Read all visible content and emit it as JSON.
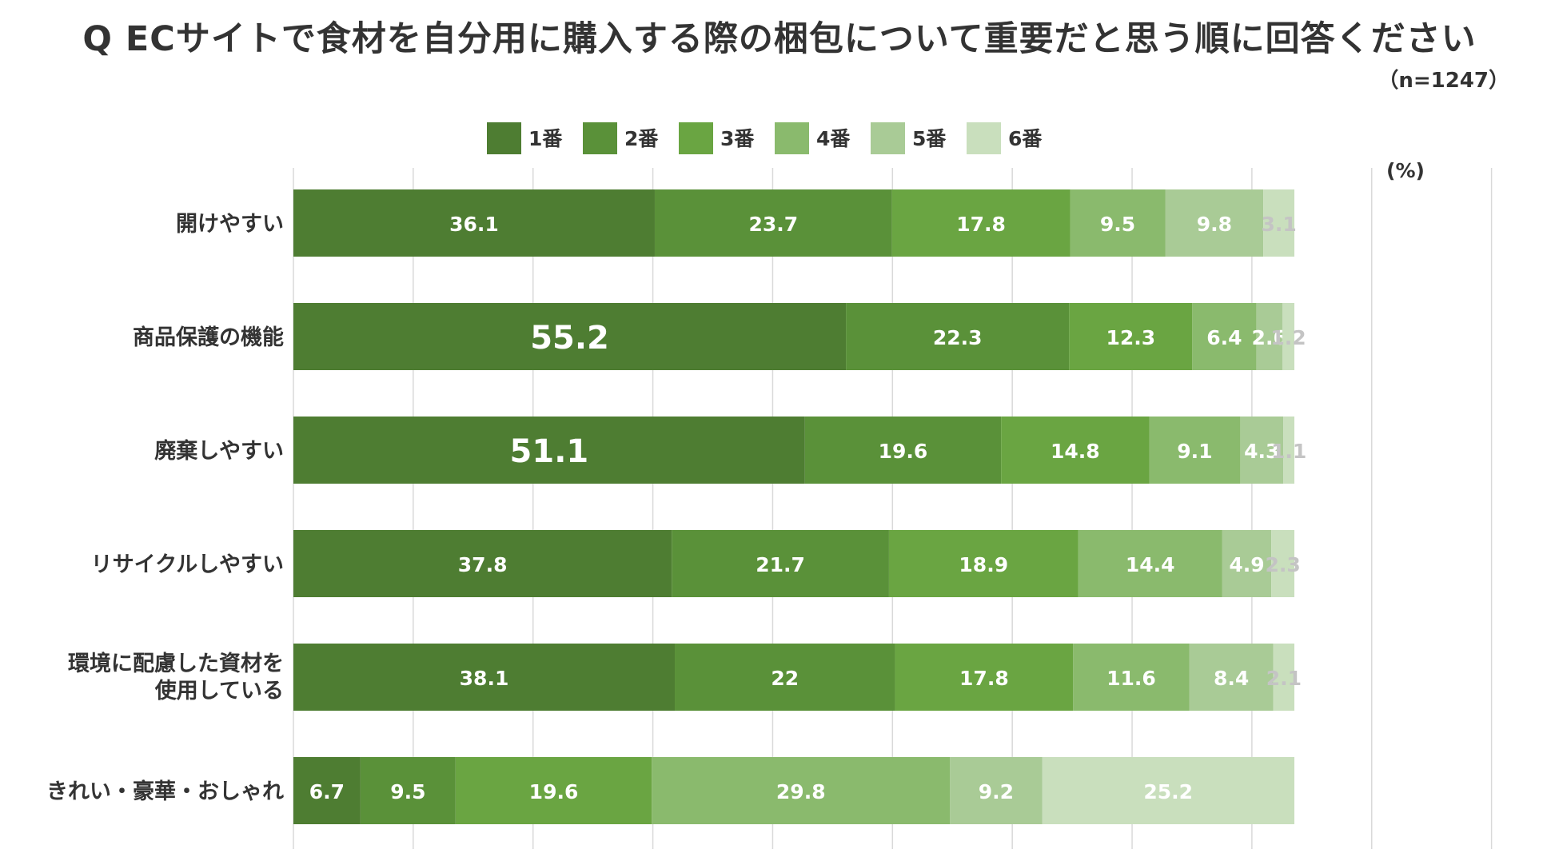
{
  "title": "Q ECサイトで食材を自分用に購入する際の梱包について重要だと思う順に回答ください",
  "sample_size": "（n=1247）",
  "chart_data": {
    "type": "bar",
    "orientation": "horizontal",
    "stacked": true,
    "unit_label": "(%)",
    "xlim": [
      0,
      100
    ],
    "grid": true,
    "legend_position": "top",
    "categories": [
      [
        "開けやすい"
      ],
      [
        "商品保護の機能"
      ],
      [
        "廃棄しやすい"
      ],
      [
        "リサイクルしやすい"
      ],
      [
        "環境に配慮した資材を",
        "使用している"
      ],
      [
        "きれい・豪華・おしゃれ"
      ]
    ],
    "series": [
      {
        "name": "1番",
        "color": "#4e7d32",
        "values": [
          36.1,
          55.2,
          51.1,
          37.8,
          38.1,
          6.7
        ]
      },
      {
        "name": "2番",
        "color": "#5a9139",
        "values": [
          23.7,
          22.3,
          19.6,
          21.7,
          22,
          9.5
        ]
      },
      {
        "name": "3番",
        "color": "#6aa542",
        "values": [
          17.8,
          12.3,
          14.8,
          18.9,
          17.8,
          19.6
        ]
      },
      {
        "name": "4番",
        "color": "#8aba6d",
        "values": [
          9.5,
          6.4,
          9.1,
          14.4,
          11.6,
          29.8
        ]
      },
      {
        "name": "5番",
        "color": "#a9cb96",
        "values": [
          9.8,
          2.6,
          4.3,
          4.9,
          8.4,
          9.2
        ]
      },
      {
        "name": "6番",
        "color": "#c9dfbd",
        "values": [
          3.1,
          1.2,
          1.1,
          2.3,
          2.1,
          25.2
        ]
      }
    ]
  }
}
